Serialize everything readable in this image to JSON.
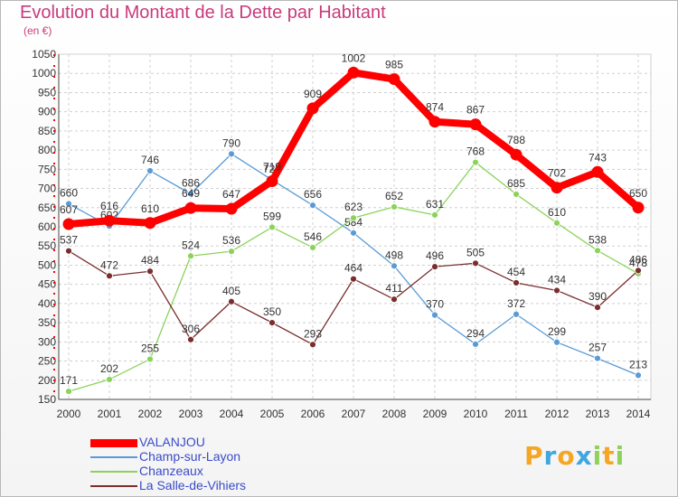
{
  "chart_data": {
    "type": "line",
    "title": "Evolution du Montant de la Dette par Habitant",
    "subtitle": "(en €)",
    "ylim": [
      150,
      1050
    ],
    "yticks": [
      150,
      200,
      250,
      300,
      350,
      400,
      450,
      500,
      550,
      600,
      650,
      700,
      750,
      800,
      850,
      900,
      950,
      1000,
      1050
    ],
    "x": [
      "2000",
      "2001",
      "2002",
      "2003",
      "2004",
      "2005",
      "2006",
      "2007",
      "2008",
      "2009",
      "2010",
      "2011",
      "2012",
      "2013",
      "2014"
    ],
    "legend_placement": "bottom-left",
    "series": [
      {
        "name": "Champ-sur-Layon",
        "color": "#5b9bd5",
        "values": [
          660,
          602,
          746,
          686,
          790,
          722,
          656,
          584,
          498,
          370,
          294,
          372,
          299,
          257,
          213
        ],
        "labels": [
          "660",
          "602",
          "746",
          "686",
          "790",
          "722",
          "656",
          "584",
          "498",
          "370",
          "294",
          "372",
          "299",
          "257",
          "213"
        ]
      },
      {
        "name": "Chanzeaux",
        "color": "#8cd35a",
        "values": [
          171,
          202,
          255,
          524,
          536,
          599,
          546,
          623,
          652,
          631,
          768,
          685,
          610,
          538,
          478
        ],
        "labels": [
          "171",
          "202",
          "255",
          "524",
          "536",
          "599",
          "546",
          "623",
          "652",
          "631",
          "768",
          "685",
          "610",
          "538",
          "478"
        ]
      },
      {
        "name": "La Salle-de-Vihiers",
        "color": "#7a2e2e",
        "values": [
          537,
          472,
          484,
          306,
          405,
          350,
          293,
          464,
          411,
          496,
          505,
          454,
          434,
          390,
          486
        ],
        "labels": [
          "537",
          "472",
          "484",
          "306",
          "405",
          "350",
          "293",
          "464",
          "411",
          "496",
          "505",
          "454",
          "434",
          "390",
          "486"
        ]
      },
      {
        "name": "VALANJOU",
        "color": "#ff0000",
        "values": [
          607,
          616,
          610,
          649,
          647,
          719,
          909,
          1002,
          985,
          874,
          867,
          788,
          702,
          743,
          650
        ],
        "labels": [
          "607",
          "616",
          "610",
          "649",
          "647",
          "719",
          "909",
          "1002",
          "985",
          "874",
          "867",
          "788",
          "702",
          "743",
          "650"
        ]
      }
    ]
  },
  "legend": {
    "items": [
      {
        "label": "VALANJOU",
        "color": "#ff0000"
      },
      {
        "label": "Champ-sur-Layon",
        "color": "#5b9bd5"
      },
      {
        "label": "Chanzeaux",
        "color": "#8cd35a"
      },
      {
        "label": "La Salle-de-Vihiers",
        "color": "#7a2e2e"
      }
    ]
  },
  "logo": {
    "letters": [
      "P",
      "r",
      "o",
      "x",
      "i",
      "t",
      "i"
    ],
    "colors": [
      "#f5a623",
      "#3fa7e0",
      "#f5a623",
      "#3fa7e0",
      "#8cd35a",
      "#f5a623",
      "#8cd35a"
    ]
  }
}
